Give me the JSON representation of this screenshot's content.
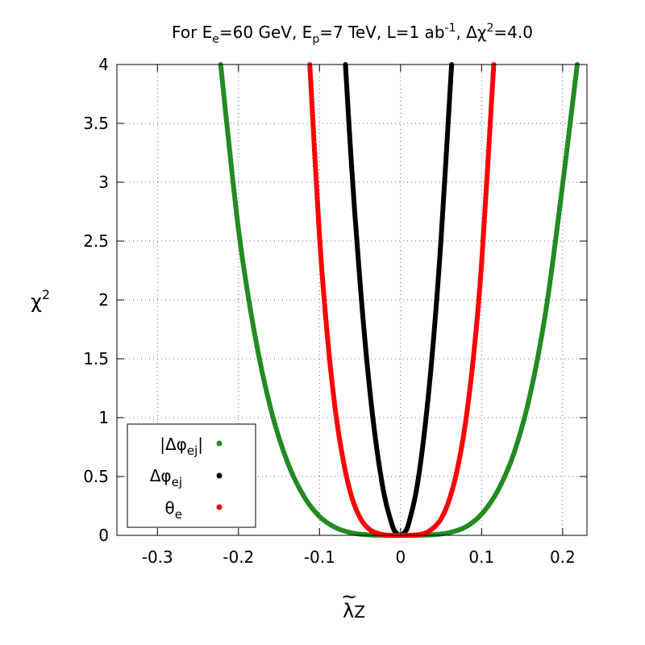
{
  "chart_data": {
    "type": "line",
    "title": {
      "prefix": "For E",
      "e_sub": "e",
      "mid1": "=60 GeV, E",
      "p_sub": "p",
      "mid2": "=7 TeV, L=1 ab",
      "lumi_sup": "-1",
      "mid3": ", Δχ",
      "chi_sup": "2",
      "suffix": "=4.0"
    },
    "xlabel": {
      "base": "λ",
      "accent": "~",
      "sub": "Z"
    },
    "ylabel": {
      "base": "χ",
      "sup": "2"
    },
    "xlim": [
      -0.35,
      0.23
    ],
    "ylim": [
      0,
      4
    ],
    "x_ticks": [
      {
        "value": -0.3,
        "label": "-0.3"
      },
      {
        "value": -0.2,
        "label": "-0.2"
      },
      {
        "value": -0.1,
        "label": "-0.1"
      },
      {
        "value": 0,
        "label": "0"
      },
      {
        "value": 0.1,
        "label": "0.1"
      },
      {
        "value": 0.2,
        "label": "0.2"
      }
    ],
    "y_ticks": [
      {
        "value": 0,
        "label": "0"
      },
      {
        "value": 0.5,
        "label": "0.5"
      },
      {
        "value": 1,
        "label": "1"
      },
      {
        "value": 1.5,
        "label": "1.5"
      },
      {
        "value": 2,
        "label": "2"
      },
      {
        "value": 2.5,
        "label": "2.5"
      },
      {
        "value": 3,
        "label": "3"
      },
      {
        "value": 3.5,
        "label": "3.5"
      },
      {
        "value": 4,
        "label": "4"
      }
    ],
    "grid": true,
    "legend_position": "bottom-left",
    "series": [
      {
        "name": "|Δφej|",
        "legend": {
          "pre": "|Δφ",
          "sub": "ej",
          "post": "|"
        },
        "color": "#228b22",
        "x": [
          -0.222,
          -0.2,
          -0.18,
          -0.16,
          -0.14,
          -0.12,
          -0.1,
          -0.08,
          -0.06,
          -0.04,
          -0.02,
          0,
          0.02,
          0.04,
          0.06,
          0.08,
          0.1,
          0.12,
          0.14,
          0.16,
          0.18,
          0.2,
          0.218
        ],
        "y": [
          4.0,
          2.6,
          1.71,
          1.07,
          0.63,
          0.34,
          0.16,
          0.065,
          0.02,
          0.004,
          0.0003,
          0,
          0.0003,
          0.005,
          0.023,
          0.07,
          0.18,
          0.38,
          0.7,
          1.2,
          1.94,
          2.98,
          4.0
        ]
      },
      {
        "name": "Δφej",
        "legend": {
          "pre": "Δφ",
          "sub": "ej",
          "post": ""
        },
        "color": "#000000",
        "x": [
          -0.068,
          -0.06,
          -0.05,
          -0.04,
          -0.03,
          -0.02,
          -0.01,
          -0.005,
          0,
          0.005,
          0.01,
          0.02,
          0.03,
          0.04,
          0.05,
          0.063
        ],
        "y": [
          4.0,
          3.09,
          2.15,
          1.37,
          0.77,
          0.34,
          0.08,
          0.02,
          0,
          0.025,
          0.1,
          0.4,
          0.91,
          1.61,
          2.52,
          4.0
        ]
      },
      {
        "name": "θe",
        "legend": {
          "pre": "θ",
          "sub": "e",
          "post": ""
        },
        "color": "#ff0000",
        "x": [
          -0.112,
          -0.1,
          -0.09,
          -0.08,
          -0.07,
          -0.06,
          -0.05,
          -0.04,
          -0.03,
          -0.02,
          -0.01,
          0,
          0.01,
          0.02,
          0.03,
          0.04,
          0.05,
          0.06,
          0.07,
          0.08,
          0.09,
          0.1,
          0.115
        ],
        "y": [
          4.0,
          2.54,
          1.67,
          1.04,
          0.61,
          0.32,
          0.15,
          0.06,
          0.02,
          0.004,
          0.0003,
          0,
          0.0003,
          0.004,
          0.018,
          0.06,
          0.14,
          0.3,
          0.56,
          0.95,
          1.52,
          2.31,
          4.0
        ]
      }
    ]
  }
}
